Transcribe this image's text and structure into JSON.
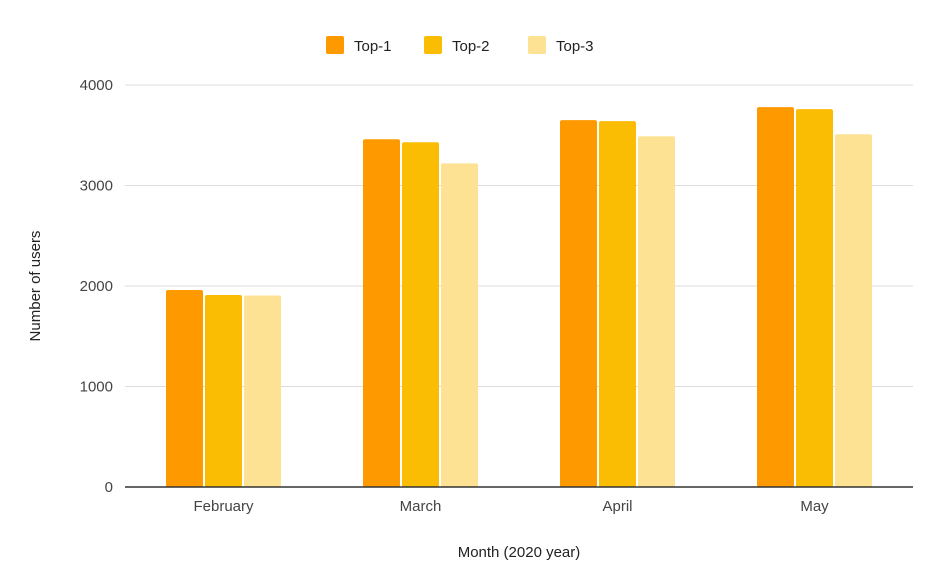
{
  "chart_data": {
    "type": "bar",
    "title": "",
    "xlabel": "Month (2020 year)",
    "ylabel": "Number of users",
    "categories": [
      "February",
      "March",
      "April",
      "May"
    ],
    "series": [
      {
        "name": "Top-1",
        "color": "#ff9900",
        "values": [
          1960,
          3460,
          3650,
          3780
        ]
      },
      {
        "name": "Top-2",
        "color": "#fbbc04",
        "values": [
          1910,
          3430,
          3640,
          3760
        ]
      },
      {
        "name": "Top-3",
        "color": "#fde293",
        "values": [
          1905,
          3220,
          3490,
          3510
        ]
      }
    ],
    "ylim": [
      0,
      4000
    ],
    "yticks": [
      "0",
      "1000",
      "2000",
      "3000",
      "4000"
    ],
    "grid": true,
    "legend_position": "top-center"
  }
}
